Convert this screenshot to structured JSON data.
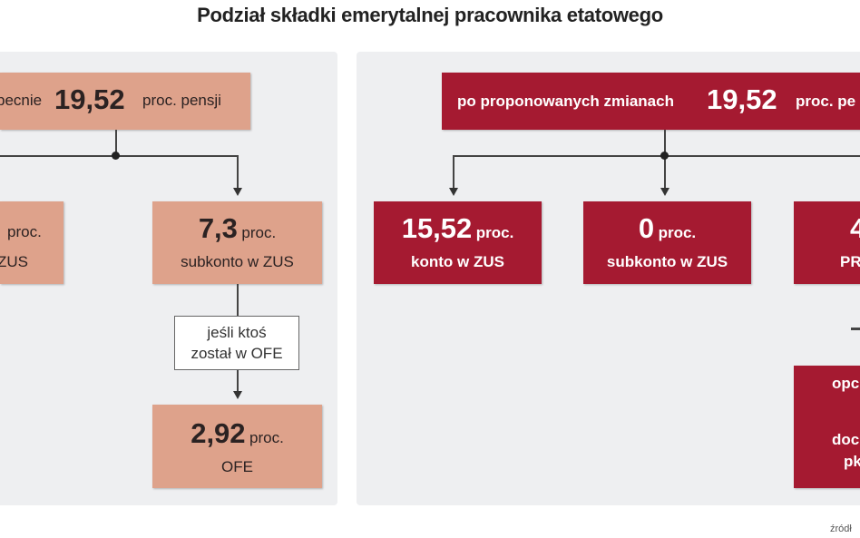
{
  "title": "Podział składki emerytalnej pracownika etatowego",
  "left": {
    "top": {
      "prefix": "pecnie",
      "value": "19,52",
      "suffix": "proc. pensji"
    },
    "box_zus": {
      "unit": "proc.",
      "label": "ZUS"
    },
    "box_subkonto": {
      "value": "7,3",
      "unit": "proc.",
      "label": "subkonto w ZUS"
    },
    "condition": {
      "line1": "jeśli ktoś",
      "line2": "został w OFE"
    },
    "box_ofe": {
      "value": "2,92",
      "unit": "proc.",
      "label": "OFE"
    }
  },
  "right": {
    "top": {
      "prefix": "po proponowanych zmianach",
      "value": "19,52",
      "suffix": "proc. pe"
    },
    "box_konto": {
      "value": "15,52",
      "unit": "proc.",
      "label": "konto w ZUS"
    },
    "box_subkonto": {
      "value": "0",
      "unit": "proc.",
      "label": "subkonto w ZUS"
    },
    "box_third": {
      "value": "4",
      "label": "PR"
    },
    "box_bottom": {
      "line1": "opc",
      "line2": "doc",
      "line3": "pk"
    }
  },
  "source": "źródł",
  "colors": {
    "current": "#dea28b",
    "proposed": "#a51a31",
    "panel": "#eeeff1"
  }
}
